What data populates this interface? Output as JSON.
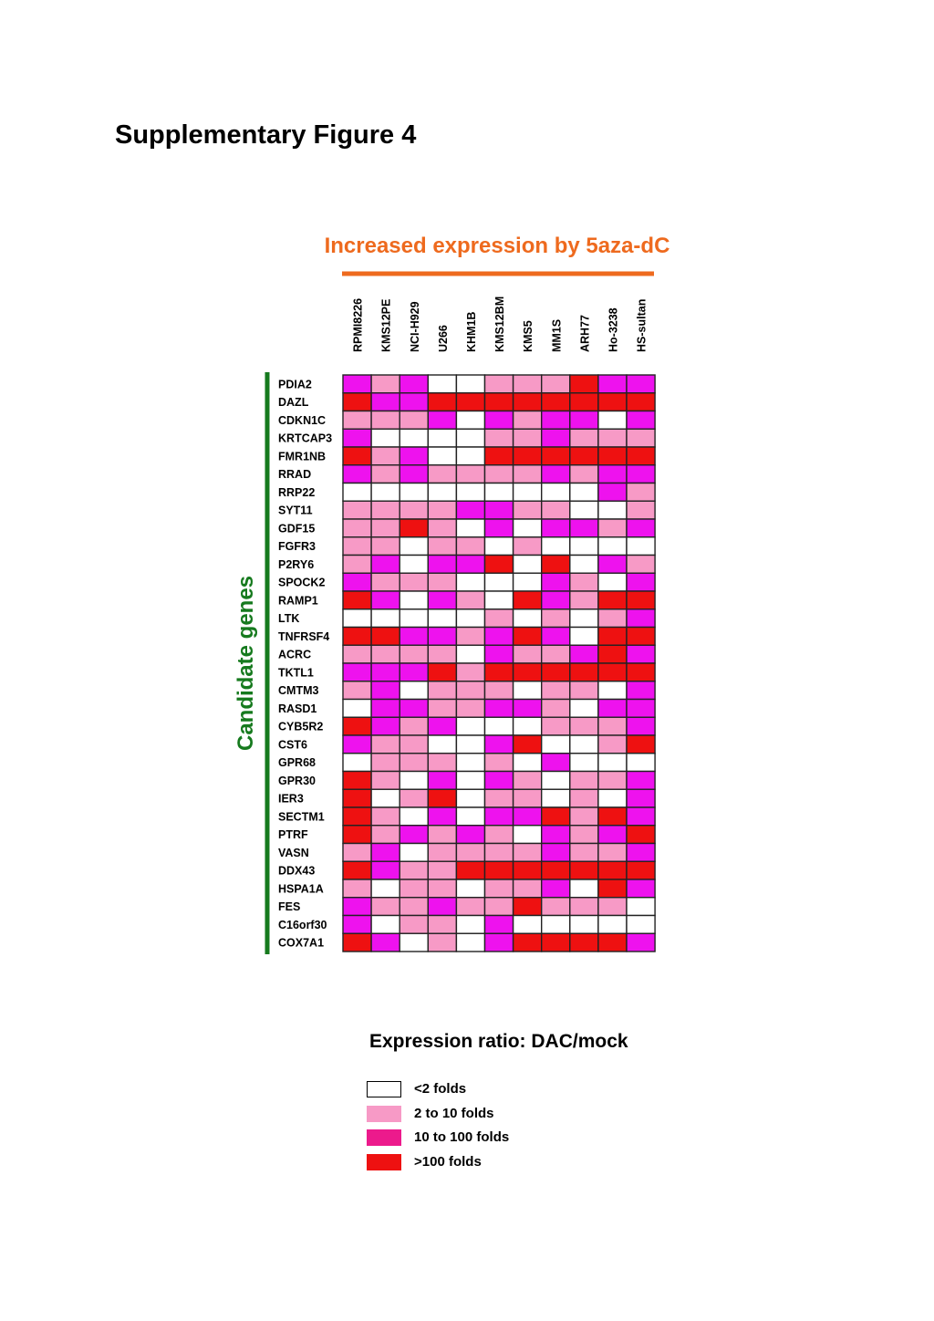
{
  "figure_title": "Supplementary Figure 4",
  "legend": {
    "title": "Expression ratio: DAC/mock",
    "items": [
      {
        "level": 0,
        "label": "<2 folds"
      },
      {
        "level": 1,
        "label": "2 to 10 folds"
      },
      {
        "level": 2,
        "label": "10 to 100 folds"
      },
      {
        "level": 3,
        "label": ">100 folds"
      }
    ]
  },
  "colors": {
    "level_0": "#ffffff",
    "level_1": "#f79ac6",
    "level_2": "#ee12ee",
    "level_3": "#ee1111",
    "legend_level_2": "#ec1a8c",
    "column_header": "#ee6a1e",
    "row_header": "#167a1e",
    "cell_border": "#222222"
  },
  "chart_data": {
    "type": "heatmap",
    "title": "Increased expression by 5aza-dC",
    "ylabel": "Candidate genes",
    "columns": [
      "RPMI8226",
      "KMS12PE",
      "NCI-H929",
      "U266",
      "KHM1B",
      "KMS12BM",
      "KMS5",
      "MM1S",
      "ARH77",
      "Ho-3238",
      "HS-sultan"
    ],
    "rows": [
      "PDIA2",
      "DAZL",
      "CDKN1C",
      "KRTCAP3",
      "FMR1NB",
      "RRAD",
      "RRP22",
      "SYT11",
      "GDF15",
      "FGFR3",
      "P2RY6",
      "SPOCK2",
      "RAMP1",
      "LTK",
      "TNFRSF4",
      "ACRC",
      "TKTL1",
      "CMTM3",
      "RASD1",
      "CYB5R2",
      "CST6",
      "GPR68",
      "GPR30",
      "IER3",
      "SECTM1",
      "PTRF",
      "VASN",
      "DDX43",
      "HSPA1A",
      "FES",
      "C16orf30",
      "COX7A1"
    ],
    "scale": "0 = <2 folds, 1 = 2 to 10 folds, 2 = 10 to 100 folds, 3 = >100 folds",
    "values": [
      [
        2,
        1,
        2,
        0,
        0,
        1,
        1,
        1,
        3,
        2,
        2
      ],
      [
        3,
        2,
        2,
        3,
        3,
        3,
        3,
        3,
        3,
        3,
        3
      ],
      [
        1,
        1,
        1,
        2,
        0,
        2,
        1,
        2,
        2,
        0,
        2
      ],
      [
        2,
        0,
        0,
        0,
        0,
        1,
        1,
        2,
        1,
        1,
        1
      ],
      [
        3,
        1,
        2,
        0,
        0,
        3,
        3,
        3,
        3,
        3,
        3
      ],
      [
        2,
        1,
        2,
        1,
        1,
        1,
        1,
        2,
        1,
        2,
        2
      ],
      [
        0,
        0,
        0,
        0,
        0,
        0,
        0,
        0,
        0,
        2,
        1
      ],
      [
        1,
        1,
        1,
        1,
        2,
        2,
        1,
        1,
        0,
        0,
        1
      ],
      [
        1,
        1,
        3,
        1,
        0,
        2,
        0,
        2,
        2,
        1,
        2
      ],
      [
        1,
        1,
        0,
        1,
        1,
        0,
        1,
        0,
        0,
        0,
        0
      ],
      [
        1,
        2,
        0,
        2,
        2,
        3,
        0,
        3,
        0,
        2,
        1
      ],
      [
        2,
        1,
        1,
        1,
        0,
        0,
        0,
        2,
        1,
        0,
        2
      ],
      [
        3,
        2,
        0,
        2,
        1,
        0,
        3,
        2,
        1,
        3,
        3
      ],
      [
        0,
        0,
        0,
        0,
        0,
        1,
        0,
        1,
        0,
        1,
        2
      ],
      [
        3,
        3,
        2,
        2,
        1,
        2,
        3,
        2,
        0,
        3,
        3
      ],
      [
        1,
        1,
        1,
        1,
        0,
        2,
        1,
        1,
        2,
        3,
        2
      ],
      [
        2,
        2,
        2,
        3,
        1,
        3,
        3,
        3,
        3,
        3,
        3
      ],
      [
        1,
        2,
        0,
        1,
        1,
        1,
        0,
        1,
        1,
        0,
        2
      ],
      [
        0,
        2,
        2,
        1,
        1,
        2,
        2,
        1,
        0,
        2,
        2
      ],
      [
        3,
        2,
        1,
        2,
        0,
        0,
        0,
        1,
        1,
        1,
        2
      ],
      [
        2,
        1,
        1,
        0,
        0,
        2,
        3,
        0,
        0,
        1,
        3
      ],
      [
        0,
        1,
        1,
        1,
        0,
        1,
        0,
        2,
        0,
        0,
        0
      ],
      [
        3,
        1,
        0,
        2,
        0,
        2,
        1,
        0,
        1,
        1,
        2
      ],
      [
        3,
        0,
        1,
        3,
        0,
        1,
        1,
        0,
        1,
        0,
        2
      ],
      [
        3,
        1,
        0,
        2,
        0,
        2,
        2,
        3,
        1,
        3,
        2
      ],
      [
        3,
        1,
        2,
        1,
        2,
        1,
        0,
        2,
        1,
        2,
        3
      ],
      [
        1,
        2,
        0,
        1,
        1,
        1,
        1,
        2,
        1,
        1,
        2
      ],
      [
        3,
        2,
        1,
        1,
        3,
        3,
        3,
        3,
        3,
        3,
        3
      ],
      [
        1,
        0,
        1,
        1,
        0,
        1,
        1,
        2,
        0,
        3,
        2
      ],
      [
        2,
        1,
        1,
        2,
        1,
        1,
        3,
        1,
        1,
        1,
        0
      ],
      [
        2,
        0,
        1,
        1,
        0,
        2,
        0,
        0,
        0,
        0,
        0
      ],
      [
        3,
        2,
        0,
        1,
        0,
        2,
        3,
        3,
        3,
        3,
        2
      ]
    ]
  }
}
